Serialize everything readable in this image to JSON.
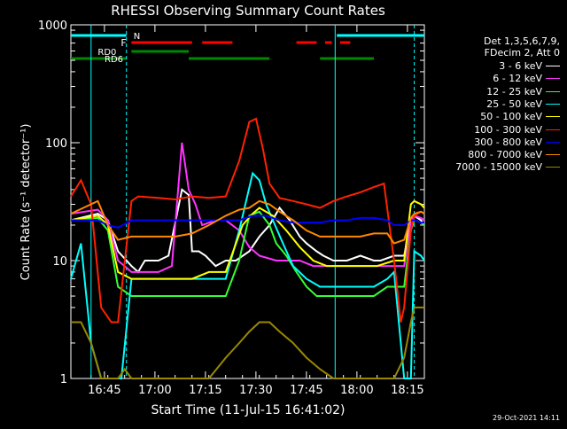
{
  "chart_data": {
    "type": "line",
    "title": "RHESSI Observing Summary Count Rates",
    "xlabel": "Start Time (11-Jul-15 16:41:02)",
    "ylabel": "Count Rate (s⁻¹ detector⁻¹)",
    "yscale": "log",
    "ylim": [
      1,
      1000
    ],
    "xlim_minutes_after_start": [
      -6,
      99
    ],
    "x_tick_labels": [
      "16:45",
      "17:00",
      "17:15",
      "17:30",
      "17:45",
      "18:00",
      "18:15"
    ],
    "y_tick_labels": [
      "1",
      "10",
      "100",
      "1000"
    ],
    "legend_header": [
      "Det 1,3,5,6,7,9,",
      "FDecim 2, Att 0"
    ],
    "series": [
      {
        "name": "3 - 6 keV",
        "color": "#ffffff",
        "x": [
          -6,
          2,
          5,
          8,
          12,
          14,
          15,
          16,
          20,
          23,
          27,
          29,
          30,
          32,
          34,
          37,
          40,
          43,
          47,
          50,
          53,
          56,
          59,
          62,
          64,
          67,
          69,
          72,
          74,
          76,
          80,
          84,
          86,
          90,
          93,
          95,
          96,
          98,
          99
        ],
        "values": [
          22,
          25,
          22,
          12,
          9,
          8,
          9,
          10,
          10,
          11,
          40,
          36,
          12,
          12,
          11,
          9,
          10,
          10,
          12,
          16,
          20,
          28,
          22,
          16,
          14,
          12,
          11,
          10,
          10,
          10,
          11,
          10,
          10,
          11,
          11,
          22,
          24,
          22,
          20
        ]
      },
      {
        "name": "6 - 12 keV",
        "color": "#ff33ff",
        "x": [
          -6,
          2,
          5,
          8,
          12,
          14,
          20,
          24,
          27,
          29,
          31,
          33,
          37,
          40,
          44,
          47,
          50,
          55,
          58,
          62,
          66,
          70,
          73,
          77,
          82,
          86,
          90,
          93,
          95,
          96,
          98,
          99
        ],
        "values": [
          25,
          27,
          22,
          10,
          8,
          8,
          8,
          9,
          100,
          40,
          30,
          20,
          22,
          22,
          18,
          13,
          11,
          10,
          10,
          10,
          9,
          9,
          9,
          9,
          9,
          9,
          9,
          9,
          22,
          24,
          23,
          22
        ]
      },
      {
        "name": "12 - 25 keV",
        "color": "#33ff33",
        "x": [
          -6,
          2,
          5,
          8,
          12,
          14,
          20,
          28,
          32,
          36,
          40,
          44,
          47,
          50,
          53,
          55,
          58,
          61,
          64,
          67,
          70,
          74,
          79,
          84,
          88,
          90,
          93,
          95,
          96,
          98,
          99
        ],
        "values": [
          22,
          23,
          18,
          6,
          5,
          5,
          5,
          5,
          5,
          5,
          5,
          10,
          24,
          26,
          20,
          14,
          11,
          8,
          6,
          5,
          5,
          5,
          5,
          5,
          6,
          6,
          6,
          18,
          22,
          21,
          20
        ]
      },
      {
        "name": "25 - 50 keV",
        "color": "#00ffff",
        "x": [
          -6,
          -3,
          0,
          3,
          6,
          9,
          12,
          15,
          20,
          25,
          30,
          35,
          40,
          44,
          48,
          50,
          52,
          54,
          57,
          60,
          64,
          68,
          72,
          76,
          80,
          84,
          88,
          90,
          93,
          95,
          96,
          98,
          99
        ],
        "values": [
          7,
          14,
          2,
          1,
          1,
          1,
          7,
          7,
          7,
          7,
          7,
          7,
          7,
          18,
          55,
          48,
          30,
          22,
          14,
          9,
          7,
          6,
          6,
          6,
          6,
          6,
          7,
          8,
          1,
          1,
          12,
          11,
          10
        ]
      },
      {
        "name": "50 - 100 keV",
        "color": "#ffff00",
        "x": [
          -6,
          2,
          5,
          8,
          12,
          14,
          20,
          25,
          30,
          35,
          40,
          45,
          48,
          50,
          54,
          58,
          62,
          66,
          70,
          75,
          80,
          85,
          90,
          93,
          95,
          96,
          98,
          99
        ],
        "values": [
          22,
          24,
          20,
          8,
          7,
          7,
          7,
          7,
          7,
          8,
          8,
          20,
          25,
          28,
          24,
          18,
          13,
          10,
          9,
          9,
          9,
          9,
          10,
          10,
          30,
          32,
          30,
          28
        ]
      },
      {
        "name": "100 - 300 keV",
        "color": "#ff2200",
        "x": [
          -6,
          -3,
          0,
          3,
          6,
          8,
          12,
          14,
          20,
          25,
          30,
          35,
          40,
          44,
          47,
          49,
          51,
          53,
          56,
          60,
          64,
          68,
          72,
          76,
          80,
          84,
          87,
          90,
          92,
          93,
          95,
          96,
          98,
          99
        ],
        "values": [
          35,
          48,
          30,
          4,
          3,
          3,
          32,
          35,
          34,
          33,
          35,
          34,
          35,
          70,
          150,
          160,
          90,
          45,
          34,
          32,
          30,
          28,
          32,
          35,
          38,
          42,
          45,
          10,
          3,
          4,
          18,
          24,
          26,
          25
        ]
      },
      {
        "name": "300 - 800 keV",
        "color": "#0000ff",
        "x": [
          -6,
          2,
          5,
          8,
          12,
          16,
          20,
          25,
          30,
          35,
          40,
          44,
          48,
          52,
          56,
          60,
          64,
          68,
          72,
          76,
          80,
          84,
          88,
          90,
          93,
          95,
          96,
          98,
          99
        ],
        "values": [
          22,
          22,
          20,
          19,
          22,
          22,
          22,
          22,
          22,
          22,
          22,
          22,
          24,
          24,
          22,
          21,
          21,
          21,
          22,
          22,
          23,
          23,
          22,
          20,
          20,
          22,
          22,
          21,
          21
        ]
      },
      {
        "name": "800 - 7000 keV",
        "color": "#ff8800",
        "x": [
          -6,
          2,
          5,
          8,
          12,
          16,
          20,
          25,
          30,
          35,
          40,
          44,
          47,
          50,
          53,
          56,
          60,
          64,
          68,
          72,
          76,
          80,
          84,
          88,
          90,
          93,
          95,
          96,
          98,
          99
        ],
        "values": [
          25,
          32,
          20,
          15,
          16,
          16,
          16,
          16,
          17,
          20,
          24,
          27,
          28,
          32,
          30,
          26,
          22,
          18,
          16,
          16,
          16,
          16,
          17,
          17,
          14,
          15,
          23,
          25,
          26,
          25
        ]
      },
      {
        "name": "7000 - 15000 keV",
        "color": "#998800",
        "x": [
          -6,
          -3,
          0,
          3,
          6,
          8,
          10,
          12,
          14,
          20,
          25,
          30,
          35,
          40,
          44,
          47,
          50,
          53,
          56,
          60,
          64,
          68,
          72,
          76,
          80,
          84,
          88,
          90,
          93,
          95,
          96,
          98,
          99
        ],
        "values": [
          3,
          3,
          2,
          1,
          1,
          1,
          1.2,
          1,
          1,
          1,
          1,
          1,
          1,
          1.5,
          2,
          2.5,
          3,
          3,
          2.5,
          2,
          1.5,
          1.2,
          1,
          1,
          1,
          1,
          1,
          1,
          1.5,
          3,
          4,
          4,
          4
        ]
      }
    ],
    "flags": {
      "N_label": "N",
      "F_label": "F",
      "RD0_label": "RD0",
      "RD6_label": "RD6",
      "N_color": "#00ffff",
      "F_color": "#ff0000",
      "RD_color": "#008800"
    },
    "grid": false,
    "legend_placement": "right"
  },
  "timestamp": "29-Oct-2021 14:11"
}
